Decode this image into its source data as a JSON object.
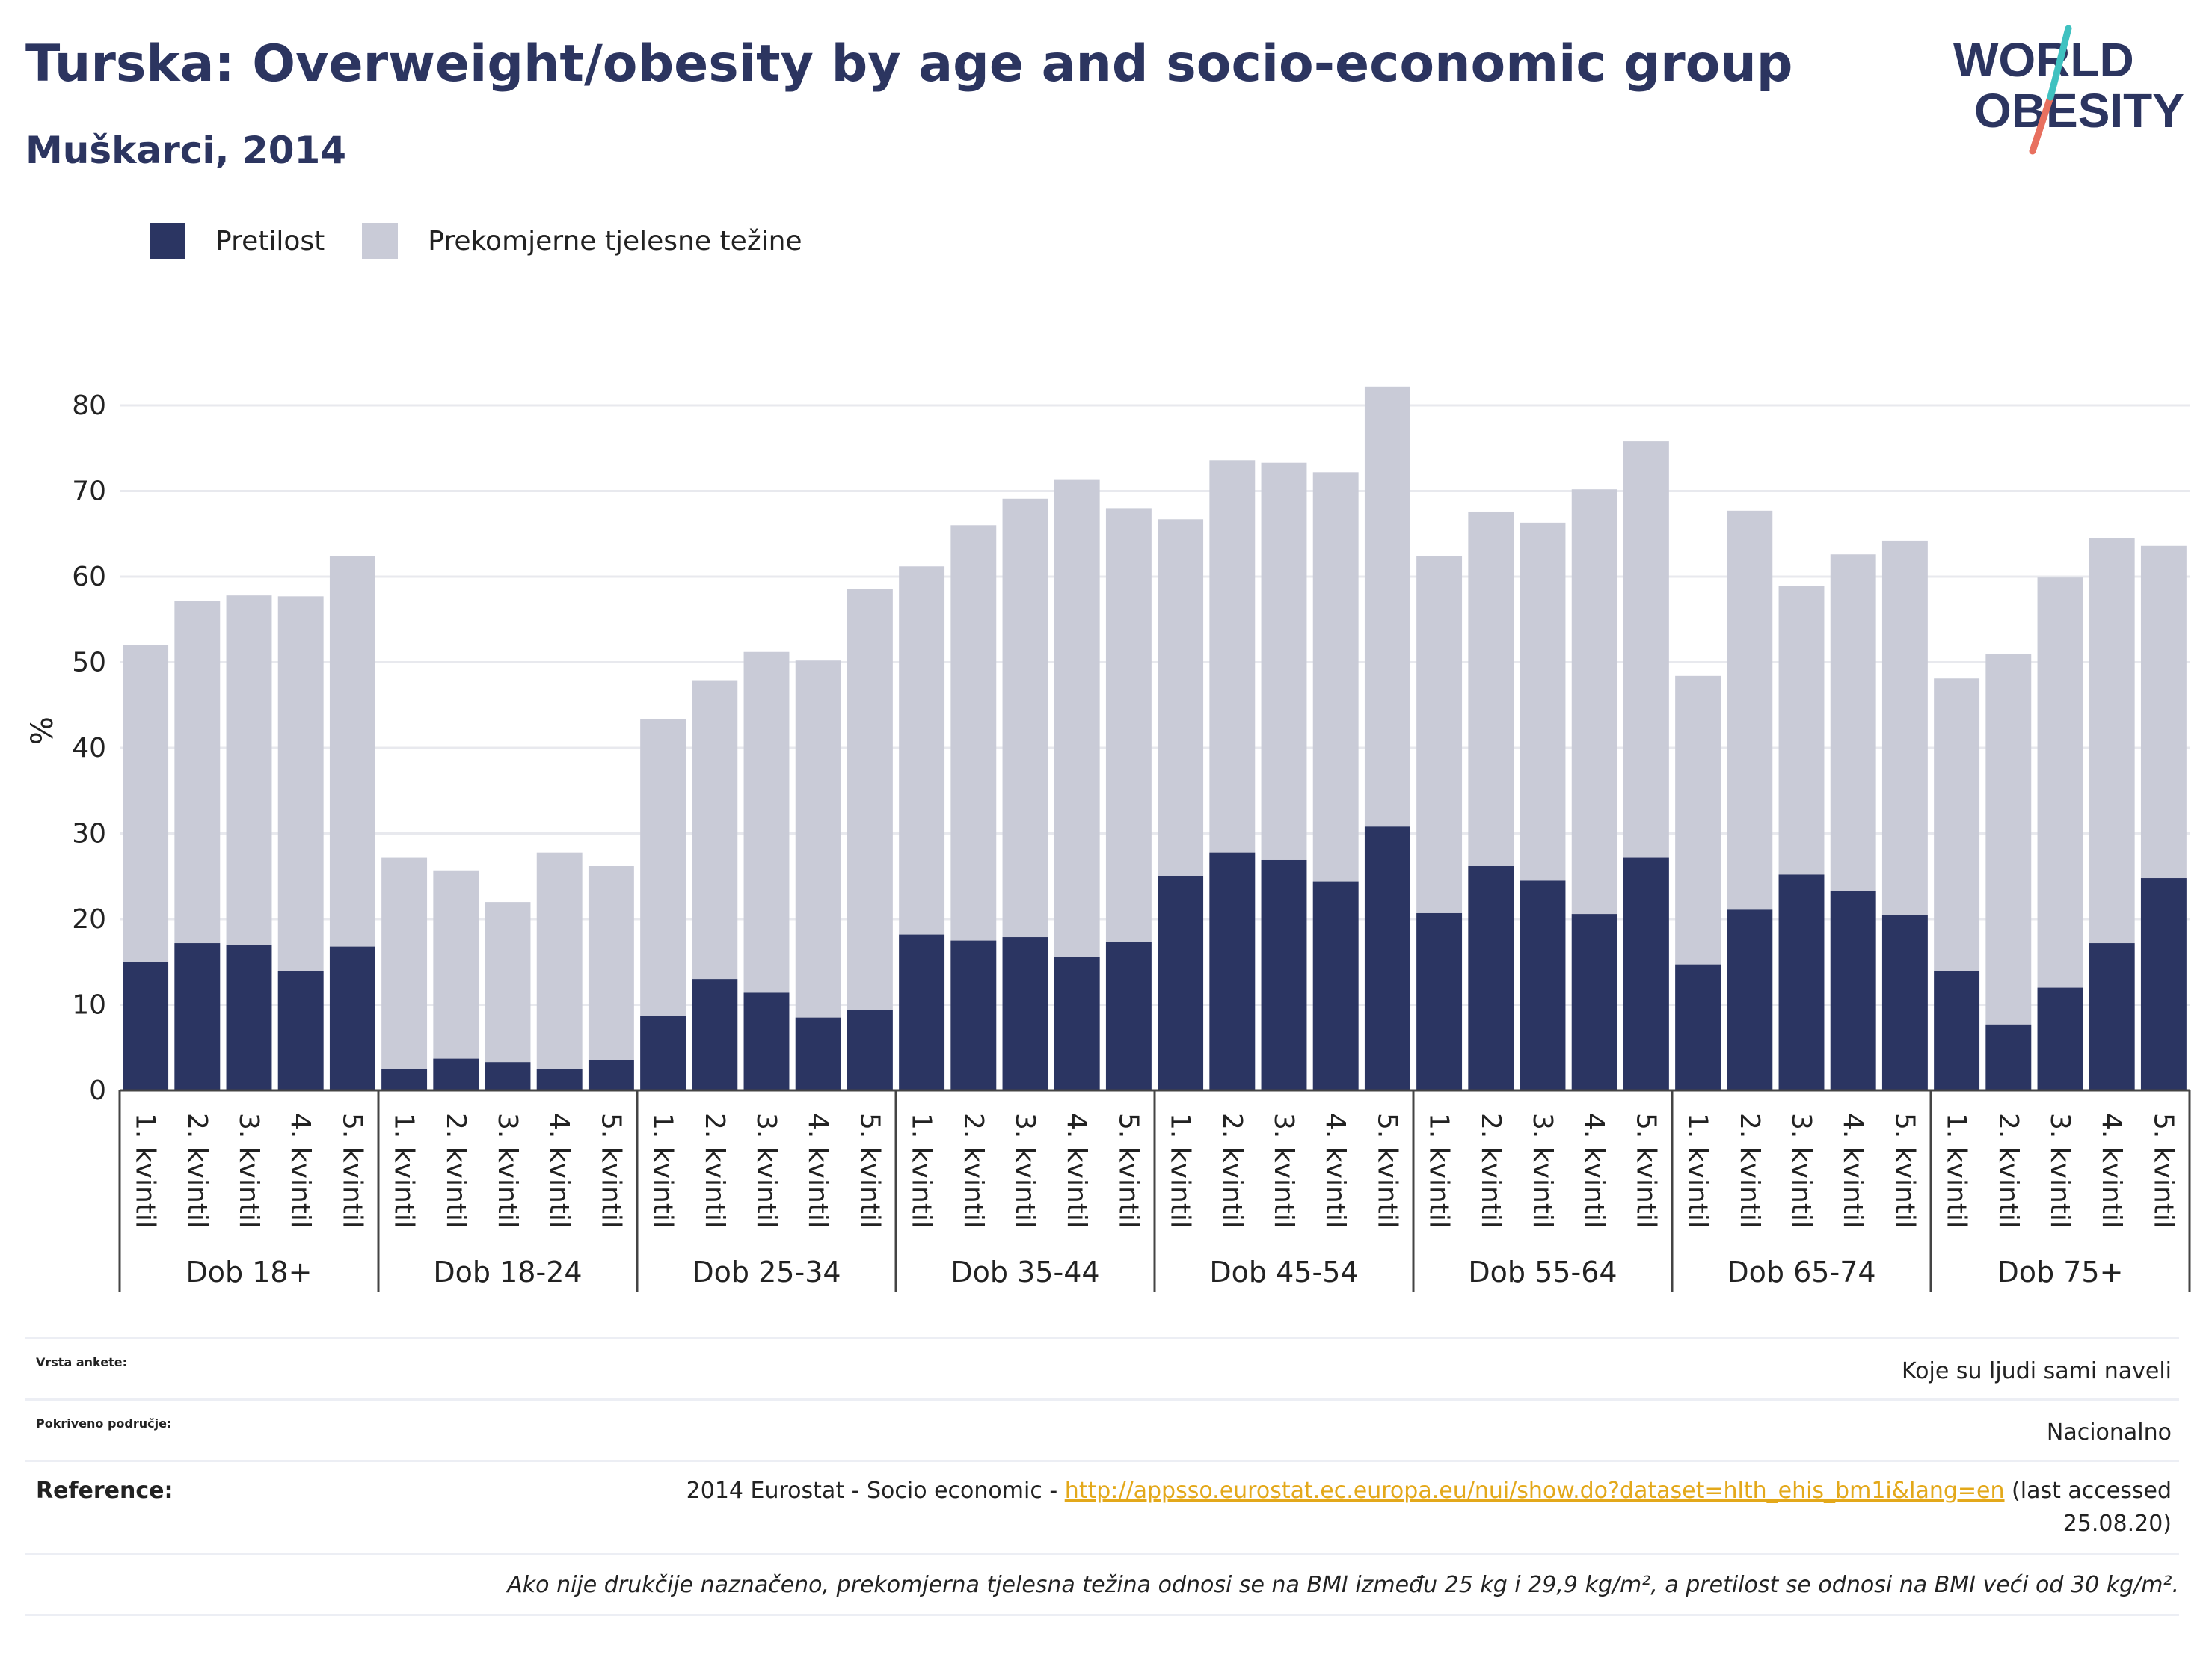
{
  "header": {
    "title": "Turska: Overweight/obesity by age and socio-economic group",
    "subtitle": "Muškarci, 2014"
  },
  "logo": {
    "line1": "WORLD",
    "line2": "OBESITY"
  },
  "legend": {
    "items": [
      {
        "label": "Pretilost",
        "color": "#2b3562"
      },
      {
        "label": "Prekomjerne tjelesne težine",
        "color": "#c9cbd7"
      }
    ]
  },
  "chart_data": {
    "type": "bar",
    "stacked": false,
    "ylabel": "%",
    "ylim": [
      0,
      85
    ],
    "yticks": [
      0,
      10,
      20,
      30,
      40,
      50,
      60,
      70,
      80
    ],
    "grid": true,
    "legend_position": "top-left",
    "groups": [
      "Dob 18+",
      "Dob 18-24",
      "Dob 25-34",
      "Dob 35-44",
      "Dob 45-54",
      "Dob 55-64",
      "Dob 65-74",
      "Dob 75+"
    ],
    "categories": [
      "1. kvintil",
      "2. kvintil",
      "3. kvintil",
      "4. kvintil",
      "5. kvintil"
    ],
    "series": [
      {
        "name": "Pretilost",
        "color": "#2b3562",
        "values": [
          [
            15.0,
            17.2,
            17.0,
            13.9,
            16.8
          ],
          [
            2.5,
            3.7,
            3.3,
            2.5,
            3.5
          ],
          [
            8.7,
            13.0,
            11.4,
            8.5,
            9.4
          ],
          [
            18.2,
            17.5,
            17.9,
            15.6,
            17.3
          ],
          [
            25.0,
            27.8,
            26.9,
            24.4,
            30.8
          ],
          [
            20.7,
            26.2,
            24.5,
            20.6,
            27.2
          ],
          [
            14.7,
            21.1,
            25.2,
            23.3,
            20.5
          ],
          [
            13.9,
            7.7,
            12.0,
            17.2,
            24.8
          ]
        ]
      },
      {
        "name": "Prekomjerne tjelesne težine",
        "color": "#c9cbd7",
        "values": [
          [
            52.0,
            57.2,
            57.8,
            57.7,
            62.4
          ],
          [
            27.2,
            25.7,
            22.0,
            27.8,
            26.2
          ],
          [
            43.4,
            47.9,
            51.2,
            50.2,
            58.6
          ],
          [
            61.2,
            66.0,
            69.1,
            71.3,
            68.0
          ],
          [
            66.7,
            73.6,
            73.3,
            72.2,
            82.2
          ],
          [
            62.4,
            67.6,
            66.3,
            70.2,
            75.8
          ],
          [
            48.4,
            67.7,
            58.9,
            62.6,
            64.2
          ],
          [
            48.1,
            51.0,
            59.9,
            64.5,
            63.6
          ]
        ]
      }
    ]
  },
  "info": {
    "rows": [
      {
        "key": "Vrsta ankete:",
        "value": "Koje su ljudi sami naveli"
      },
      {
        "key": "Pokriveno područje:",
        "value": "Nacionalno"
      }
    ],
    "reference": {
      "key": "Reference:",
      "prefix": "2014 Eurostat - Socio economic - ",
      "link": "http://appsso.eurostat.ec.europa.eu/nui/show.do?dataset=hlth_ehis_bm1i&lang=en",
      "suffix": " (last accessed",
      "suffix2": "25.08.20)"
    },
    "note": "Ako nije drukčije naznačeno, prekomjerna tjelesna težina odnosi se na BMI između 25 kg i 29,9 kg/m², a pretilost se odnosi na BMI veći od 30 kg/m²."
  }
}
